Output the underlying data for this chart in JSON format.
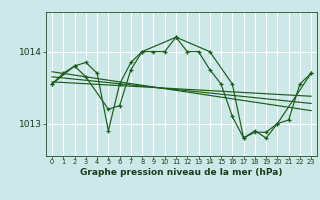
{
  "title": "Graphe pression niveau de la mer (hPa)",
  "bg_color": "#cde8e8",
  "line_color": "#1a5c1a",
  "grid_color": "#ffffff",
  "xmin": -0.5,
  "xmax": 23.5,
  "ymin": 1012.55,
  "ymax": 1014.55,
  "yticks": [
    1013,
    1014
  ],
  "xticks": [
    0,
    1,
    2,
    3,
    4,
    5,
    6,
    7,
    8,
    9,
    10,
    11,
    12,
    13,
    14,
    15,
    16,
    17,
    18,
    19,
    20,
    21,
    22,
    23
  ],
  "series1_x": [
    0,
    1,
    2,
    3,
    4,
    5,
    6,
    7,
    8,
    9,
    10,
    11,
    12,
    13,
    14,
    15,
    16,
    17,
    18,
    19,
    20,
    21,
    22,
    23
  ],
  "series1_y": [
    1013.55,
    1013.7,
    1013.8,
    1013.85,
    1013.7,
    1012.9,
    1013.55,
    1013.85,
    1014.0,
    1014.0,
    1014.0,
    1014.2,
    1014.0,
    1014.0,
    1013.75,
    1013.55,
    1013.1,
    1012.8,
    1012.9,
    1012.8,
    1013.0,
    1013.05,
    1013.55,
    1013.7
  ],
  "series2_x": [
    0,
    2,
    3,
    5,
    6,
    7,
    8,
    11,
    14,
    16,
    17,
    18,
    19,
    20,
    23
  ],
  "series2_y": [
    1013.55,
    1013.8,
    1013.65,
    1013.2,
    1013.25,
    1013.75,
    1014.0,
    1014.2,
    1014.0,
    1013.55,
    1012.8,
    1012.88,
    1012.88,
    1013.0,
    1013.7
  ],
  "trend1_x": [
    0,
    23
  ],
  "trend1_y": [
    1013.72,
    1013.18
  ],
  "trend2_x": [
    0,
    23
  ],
  "trend2_y": [
    1013.65,
    1013.28
  ],
  "trend3_x": [
    0,
    23
  ],
  "trend3_y": [
    1013.58,
    1013.38
  ]
}
